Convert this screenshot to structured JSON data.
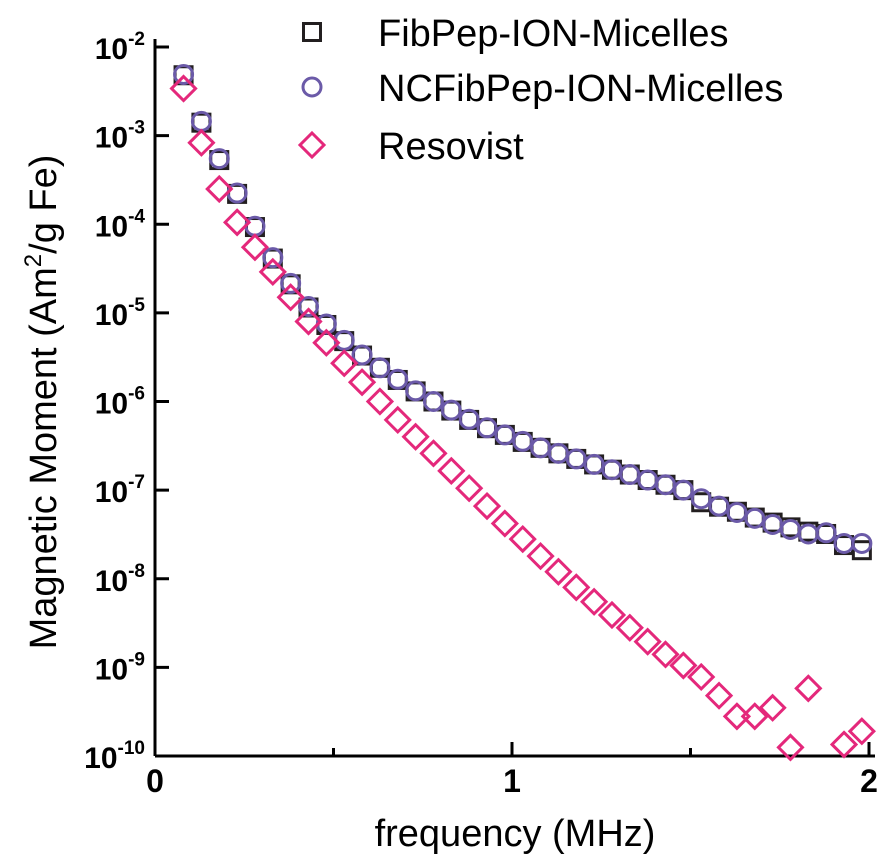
{
  "chart_data": {
    "type": "scatter",
    "title": "",
    "xlabel": "frequency (MHz)",
    "ylabel": "Magnetic Moment (Am²/g Fe)",
    "ylabel_parts": {
      "pre": "Magnetic Moment (Am",
      "sup": "2",
      "post": "/g Fe)"
    },
    "xlim": [
      0,
      2
    ],
    "ylim": [
      1e-10,
      0.01
    ],
    "yscale": "log",
    "grid": false,
    "legend_position": "top-right",
    "x_ticks": [
      {
        "value": 0,
        "label": "0"
      },
      {
        "value": 1,
        "label": "1"
      },
      {
        "value": 2,
        "label": "2"
      }
    ],
    "x_minor_ticks": [
      0.5,
      1.5
    ],
    "y_ticks": [
      {
        "value": -2,
        "base": "10",
        "exp": "-2"
      },
      {
        "value": -3,
        "base": "10",
        "exp": "-3"
      },
      {
        "value": -4,
        "base": "10",
        "exp": "-4"
      },
      {
        "value": -5,
        "base": "10",
        "exp": "-5"
      },
      {
        "value": -6,
        "base": "10",
        "exp": "-6"
      },
      {
        "value": -7,
        "base": "10",
        "exp": "-7"
      },
      {
        "value": -8,
        "base": "10",
        "exp": "-8"
      },
      {
        "value": -9,
        "base": "10",
        "exp": "-9"
      },
      {
        "value": -10,
        "base": "10",
        "exp": "-10"
      }
    ],
    "x": [
      0.08,
      0.13,
      0.18,
      0.23,
      0.28,
      0.33,
      0.38,
      0.43,
      0.48,
      0.53,
      0.58,
      0.63,
      0.68,
      0.73,
      0.78,
      0.83,
      0.88,
      0.93,
      0.98,
      1.03,
      1.08,
      1.13,
      1.18,
      1.23,
      1.28,
      1.33,
      1.38,
      1.43,
      1.48,
      1.53,
      1.58,
      1.63,
      1.68,
      1.73,
      1.78,
      1.83,
      1.88,
      1.93,
      1.98
    ],
    "series": [
      {
        "name": "FibPep-ION-Micelles",
        "marker": "square",
        "color": "#231f20",
        "values": [
          0.0048,
          0.0014,
          0.00053,
          0.00022,
          9.3e-05,
          4.1e-05,
          2.1e-05,
          1.15e-05,
          7.3e-06,
          4.8e-06,
          3.3e-06,
          2.4e-06,
          1.75e-06,
          1.3e-06,
          1e-06,
          7.9e-07,
          6.2e-07,
          5e-07,
          4.2e-07,
          3.5e-07,
          3e-07,
          2.6e-07,
          2.25e-07,
          1.95e-07,
          1.7e-07,
          1.5e-07,
          1.3e-07,
          1.15e-07,
          1e-07,
          7.3e-08,
          6.5e-08,
          5.7e-08,
          4.9e-08,
          4.3e-08,
          3.8e-08,
          3.4e-08,
          3.2e-08,
          2.4e-08,
          2.1e-08
        ]
      },
      {
        "name": "NCFibPep-ION-Micelles",
        "marker": "circle",
        "color": "#6b5aa8",
        "values": [
          0.0049,
          0.00145,
          0.00055,
          0.000225,
          9.5e-05,
          4.2e-05,
          2.15e-05,
          1.18e-05,
          7.5e-06,
          4.9e-06,
          3.35e-06,
          2.4e-06,
          1.78e-06,
          1.32e-06,
          1e-06,
          8e-07,
          6.3e-07,
          5.05e-07,
          4.2e-07,
          3.55e-07,
          3e-07,
          2.6e-07,
          2.25e-07,
          1.95e-07,
          1.7e-07,
          1.5e-07,
          1.3e-07,
          1.15e-07,
          1e-07,
          8e-08,
          6.6e-08,
          5.6e-08,
          4.8e-08,
          4.1e-08,
          3.6e-08,
          3.2e-08,
          3.3e-08,
          2.5e-08,
          2.5e-08
        ]
      },
      {
        "name": "Resovist",
        "marker": "diamond",
        "color": "#e4287b",
        "x": [
          0.08,
          0.13,
          0.18,
          0.23,
          0.28,
          0.33,
          0.38,
          0.43,
          0.48,
          0.53,
          0.58,
          0.63,
          0.68,
          0.73,
          0.78,
          0.83,
          0.88,
          0.93,
          0.98,
          1.03,
          1.08,
          1.13,
          1.18,
          1.23,
          1.28,
          1.33,
          1.38,
          1.43,
          1.48,
          1.53,
          1.58,
          1.63,
          1.68,
          1.73,
          1.78,
          1.83,
          1.93,
          1.98
        ],
        "values": [
          0.0034,
          0.00083,
          0.00025,
          0.000105,
          5.5e-05,
          2.9e-05,
          1.5e-05,
          8e-06,
          4.6e-06,
          2.7e-06,
          1.65e-06,
          1e-06,
          6.2e-07,
          4e-07,
          2.6e-07,
          1.65e-07,
          1.05e-07,
          6.6e-08,
          4.2e-08,
          2.8e-08,
          1.8e-08,
          1.2e-08,
          8e-09,
          5.5e-09,
          3.9e-09,
          2.8e-09,
          1.95e-09,
          1.4e-09,
          1.05e-09,
          7.8e-10,
          4.8e-10,
          2.8e-10,
          2.8e-10,
          3.5e-10,
          1.25e-10,
          5.8e-10,
          1.35e-10,
          1.9e-10
        ]
      }
    ]
  }
}
